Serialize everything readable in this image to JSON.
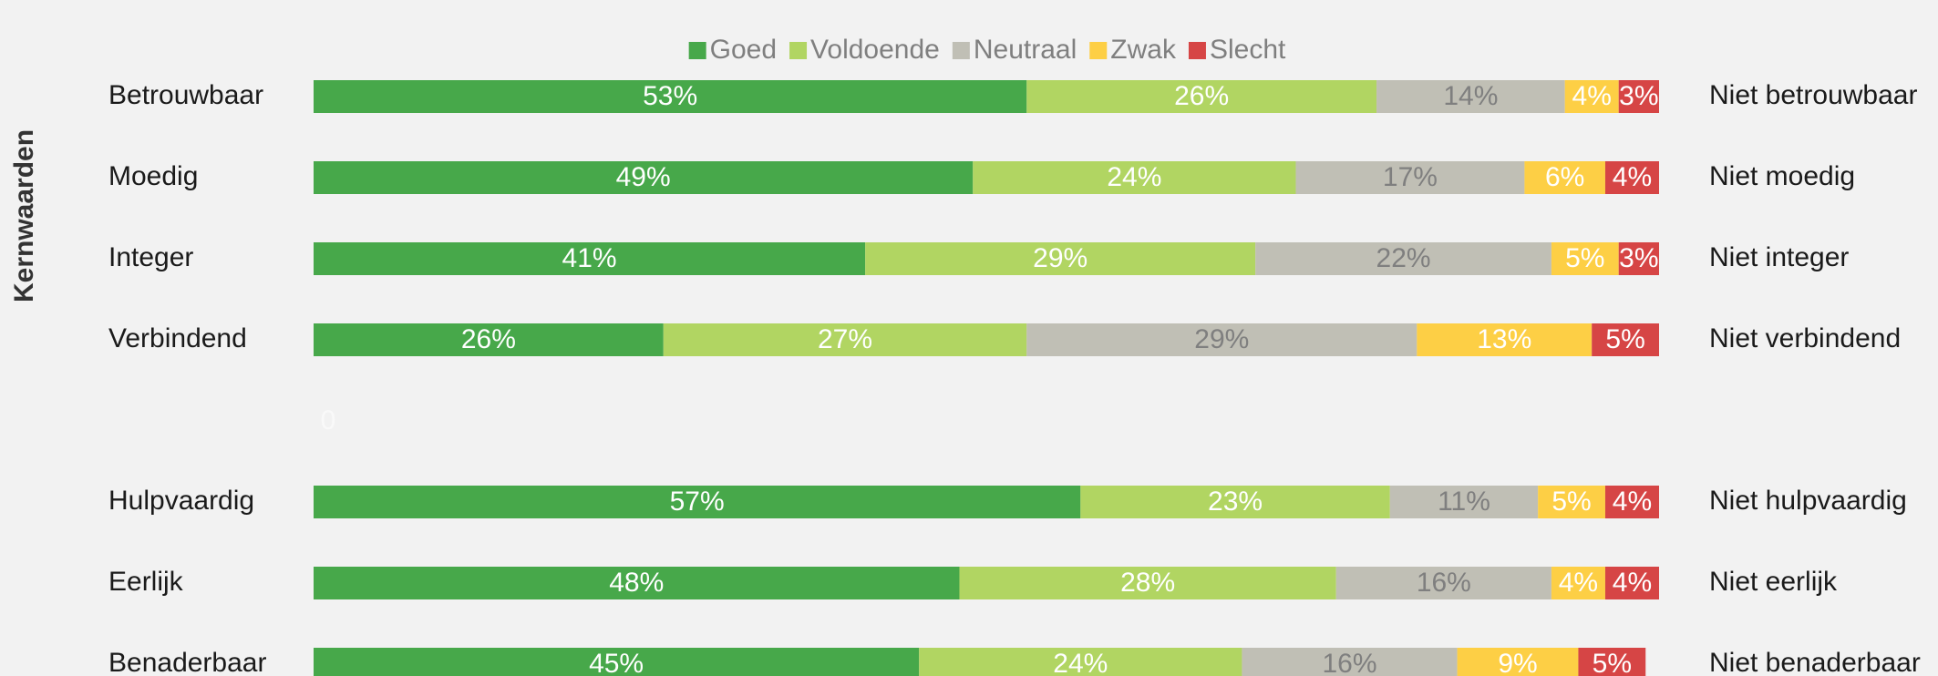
{
  "chart_data": {
    "type": "stacked-bar-horizontal",
    "y_axis_label": "Kernwaarden",
    "categories": [
      "Betrouwbaar",
      "Moedig",
      "Integer",
      "Verbindend",
      null,
      "Hulpvaardig",
      "Eerlijk",
      "Benaderbaar"
    ],
    "right_labels": [
      "Niet betrouwbaar",
      "Niet moedig",
      "Niet integer",
      "Niet verbindend",
      null,
      "Niet hulpvaardig",
      "Niet eerlijk",
      "Niet benaderbaar"
    ],
    "xlim": [
      0,
      100
    ],
    "legend": "top",
    "series": [
      {
        "name": "Goed",
        "color": "#47a84a",
        "label_color": "#ffffff",
        "values": [
          53,
          49,
          41,
          26,
          0,
          57,
          48,
          45
        ],
        "value_labels": [
          "53%",
          "49%",
          "41%",
          "26%",
          "0",
          "57%",
          "48%",
          "45%"
        ]
      },
      {
        "name": "Voldoende",
        "color": "#b1d562",
        "label_color": "#ffffff",
        "values": [
          26,
          24,
          29,
          27,
          null,
          23,
          28,
          24
        ],
        "value_labels": [
          "26%",
          "24%",
          "29%",
          "27%",
          null,
          "23%",
          "28%",
          "24%"
        ]
      },
      {
        "name": "Neutraal",
        "color": "#c0bfb5",
        "label_color": "#7f7f7f",
        "values": [
          14,
          17,
          22,
          29,
          null,
          11,
          16,
          16
        ],
        "value_labels": [
          "14%",
          "17%",
          "22%",
          "29%",
          null,
          "11%",
          "16%",
          "16%"
        ]
      },
      {
        "name": "Zwak",
        "color": "#fdcf45",
        "label_color": "#ffffff",
        "values": [
          4,
          6,
          5,
          13,
          null,
          5,
          4,
          9
        ],
        "value_labels": [
          "4%",
          "6%",
          "5%",
          "13%",
          null,
          "5%",
          "4%",
          "9%"
        ]
      },
      {
        "name": "Slecht",
        "color": "#d64545",
        "label_color": "#ffffff",
        "values": [
          3,
          4,
          3,
          5,
          null,
          4,
          4,
          5
        ],
        "value_labels": [
          "3%",
          "4%",
          "3%",
          "5%",
          null,
          "4%",
          "4%",
          "5%"
        ]
      }
    ]
  }
}
